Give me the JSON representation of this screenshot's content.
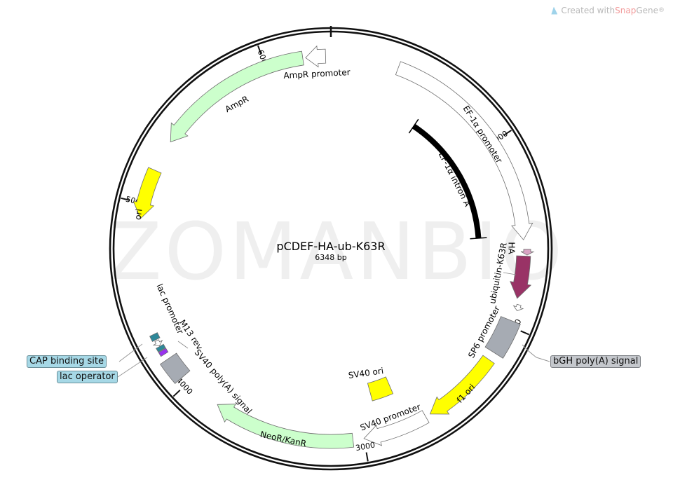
{
  "credit": {
    "prefix": "Created with ",
    "brand": "Snap",
    "brand_rest": "Gene",
    "mark": "®"
  },
  "watermark": "ZOMANBIO",
  "plasmid": {
    "name": "pCDEF-HA-ub-K63R",
    "length_label": "6348 bp",
    "length_bp": 6348
  },
  "ticks": [
    {
      "bp": 1000,
      "label": "1000"
    },
    {
      "bp": 2000,
      "label": "2000"
    },
    {
      "bp": 3000,
      "label": "3000"
    },
    {
      "bp": 4000,
      "label": "4000"
    },
    {
      "bp": 5000,
      "label": "5000"
    },
    {
      "bp": 6000,
      "label": "6000"
    }
  ],
  "features": [
    {
      "name": "AmpR promoter",
      "start": 6215,
      "end": 6320,
      "direction": "reverse",
      "color": "#ffffff"
    },
    {
      "name": "AmpR",
      "start": 5355,
      "end": 6200,
      "direction": "reverse",
      "color": "#ccffcc"
    },
    {
      "name": "EF-1α promoter",
      "start": 360,
      "end": 1540,
      "direction": "forward",
      "color": "#ffffff"
    },
    {
      "name": "EF-1α intron A",
      "start": 600,
      "end": 1515,
      "direction": "none",
      "color": "#000000"
    },
    {
      "name": "HA",
      "start": 1590,
      "end": 1620,
      "direction": "forward",
      "color": "#d9a3c4"
    },
    {
      "name": "ubiquitin-K63R",
      "start": 1625,
      "end": 1850,
      "direction": "forward",
      "color": "#993366"
    },
    {
      "name": "SP6 promoter",
      "start": 1880,
      "end": 1912,
      "direction": "forward",
      "color": "#ffffff"
    },
    {
      "name": "bGH poly(A) signal",
      "start": 1970,
      "end": 2160,
      "direction": "none",
      "color": "#a6abb3"
    },
    {
      "name": "f1 ori",
      "start": 2205,
      "end": 2628,
      "direction": "forward",
      "color": "#ffff00"
    },
    {
      "name": "SV40 promoter",
      "start": 2655,
      "end": 3000,
      "direction": "forward",
      "color": "#ffffff"
    },
    {
      "name": "SV40 ori",
      "start": 2765,
      "end": 2905,
      "direction": "none",
      "color": "#ffff00"
    },
    {
      "name": "NeoR/KanR",
      "start": 3058,
      "end": 3810,
      "direction": "forward",
      "color": "#ccffcc"
    },
    {
      "name": "SV40 poly(A) signal",
      "start": 4040,
      "end": 4160,
      "direction": "none",
      "color": "#a6abb3"
    },
    {
      "name": "M13 rev",
      "start": 4190,
      "end": 4213,
      "direction": "none",
      "color": "#9933ee"
    },
    {
      "name": "lac operator",
      "start": 4216,
      "end": 4237,
      "direction": "none",
      "color": "#2e8899"
    },
    {
      "name": "lac promoter",
      "start": 4240,
      "end": 4270,
      "direction": "reverse",
      "color": "#ffffff"
    },
    {
      "name": "CAP binding site",
      "start": 4276,
      "end": 4306,
      "direction": "none",
      "color": "#2e8899"
    },
    {
      "name": "ori",
      "start": 4920,
      "end": 5185,
      "direction": "reverse",
      "color": "#ffff00"
    }
  ]
}
